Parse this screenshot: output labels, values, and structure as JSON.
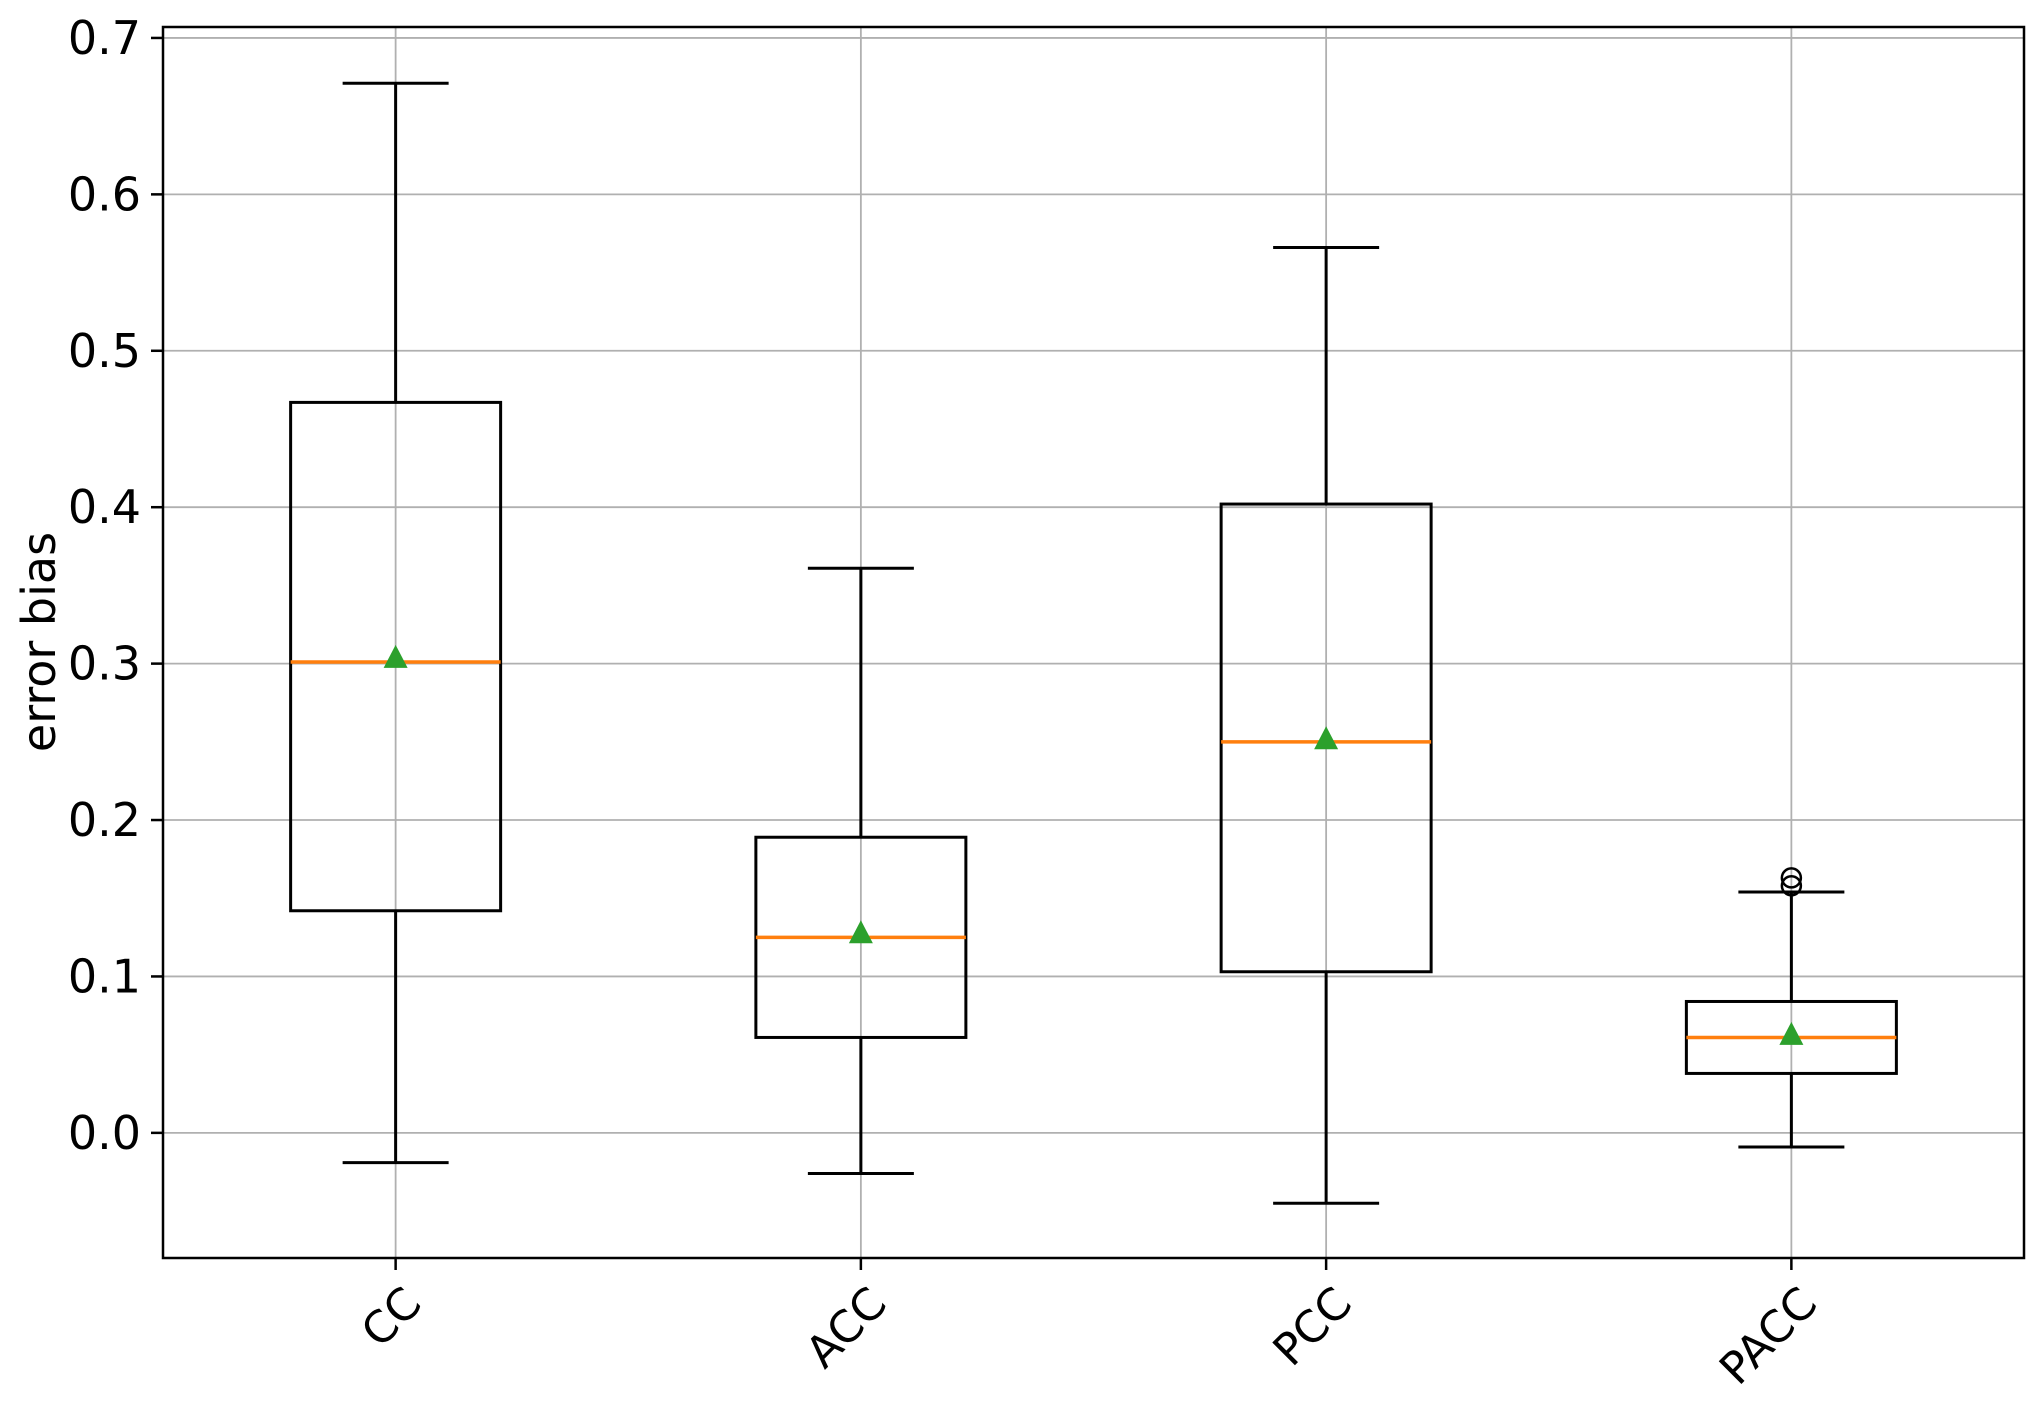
{
  "figure": {
    "background": "#ffffff"
  },
  "chart_data": {
    "type": "boxplot",
    "title": "",
    "xlabel": "",
    "ylabel": "error bias",
    "categories": [
      "CC",
      "ACC",
      "PCC",
      "PACC"
    ],
    "ylim": [
      -0.08,
      0.707
    ],
    "yticks": [
      0.0,
      0.1,
      0.2,
      0.3,
      0.4,
      0.5,
      0.6,
      0.7
    ],
    "ytick_labels": [
      "0.0",
      "0.1",
      "0.2",
      "0.3",
      "0.4",
      "0.5",
      "0.6",
      "0.7"
    ],
    "grid": true,
    "legend": "none",
    "series": [
      {
        "name": "CC",
        "whisker_low": -0.019,
        "q1": 0.142,
        "median": 0.301,
        "mean": 0.303,
        "q3": 0.467,
        "whisker_high": 0.671,
        "outliers": []
      },
      {
        "name": "ACC",
        "whisker_low": -0.026,
        "q1": 0.061,
        "median": 0.125,
        "mean": 0.127,
        "q3": 0.189,
        "whisker_high": 0.361,
        "outliers": []
      },
      {
        "name": "PCC",
        "whisker_low": -0.045,
        "q1": 0.103,
        "median": 0.25,
        "mean": 0.251,
        "q3": 0.402,
        "whisker_high": 0.566,
        "outliers": []
      },
      {
        "name": "PACC",
        "whisker_low": -0.009,
        "q1": 0.038,
        "median": 0.061,
        "mean": 0.062,
        "q3": 0.084,
        "whisker_high": 0.154,
        "outliers": [
          0.158,
          0.163
        ]
      }
    ],
    "colors": {
      "box": "#000000",
      "whisker": "#000000",
      "median": "#ff7f0e",
      "mean_marker": "#2ca02c",
      "outlier_stroke": "#000000",
      "grid": "#b0b0b0",
      "spine": "#000000"
    }
  }
}
